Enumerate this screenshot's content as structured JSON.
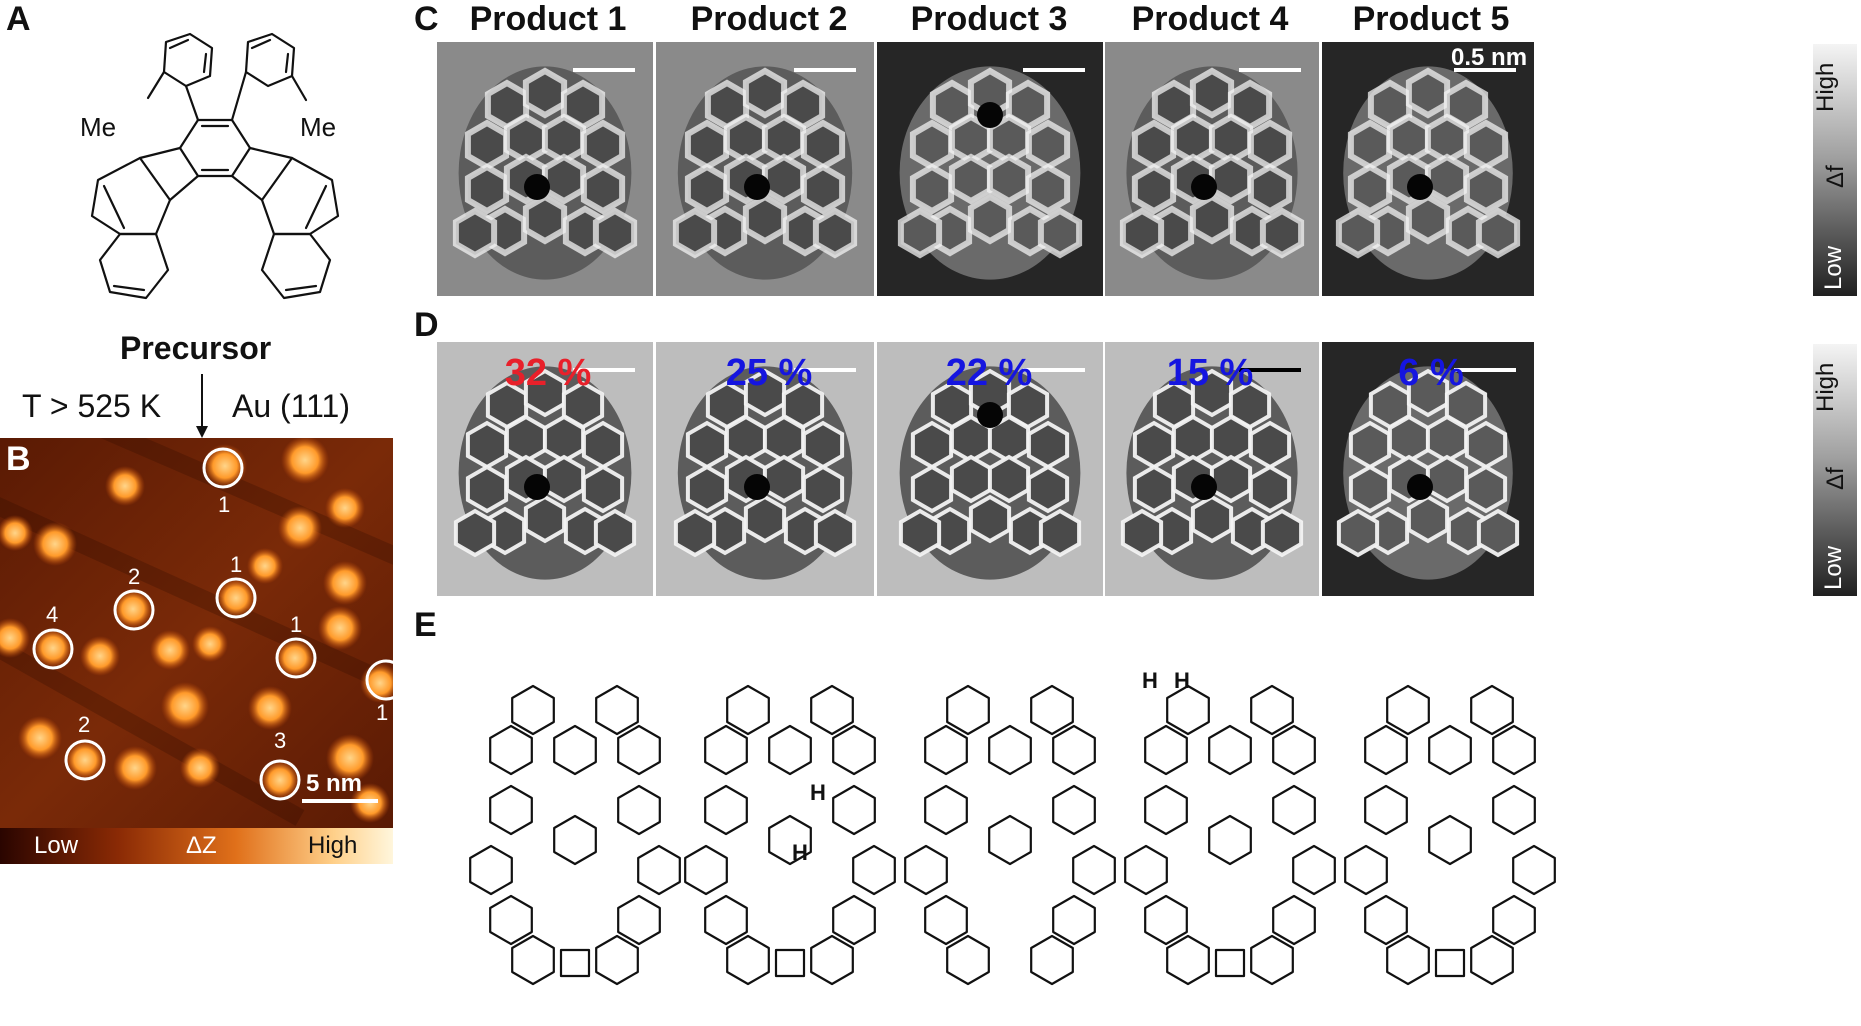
{
  "panels": {
    "a": "A",
    "b": "B",
    "c": "C",
    "d": "D",
    "e": "E"
  },
  "precursor": {
    "label": "Precursor",
    "me_left": "Me",
    "me_right": "Me",
    "condition_temp": "T > 525 K",
    "condition_substrate": "Au (111)"
  },
  "stm": {
    "scale_bar": "5 nm",
    "colorbar_low": "Low",
    "colorbar_mid": "ΔZ",
    "colorbar_high": "High",
    "circle_labels": [
      "1",
      "1",
      "2",
      "4",
      "1",
      "2",
      "3",
      "1"
    ]
  },
  "products": [
    {
      "title": "Product 1",
      "percent": "32 %",
      "percent_color": "#e8202a"
    },
    {
      "title": "Product 2",
      "percent": "25 %",
      "percent_color": "#1515e0"
    },
    {
      "title": "Product 3",
      "percent": "22 %",
      "percent_color": "#1515e0"
    },
    {
      "title": "Product 4",
      "percent": "15 %",
      "percent_color": "#1515e0"
    },
    {
      "title": "Product 5",
      "percent": "6 %",
      "percent_color": "#1515e0"
    }
  ],
  "afm": {
    "scale_bar": "0.5 nm",
    "colorbar_high": "High",
    "colorbar_mid": "Δf",
    "colorbar_low": "Low"
  },
  "structures": {
    "h_labels_p2": [
      "H",
      "H"
    ],
    "h_labels_p3": [
      "H",
      "H"
    ]
  }
}
